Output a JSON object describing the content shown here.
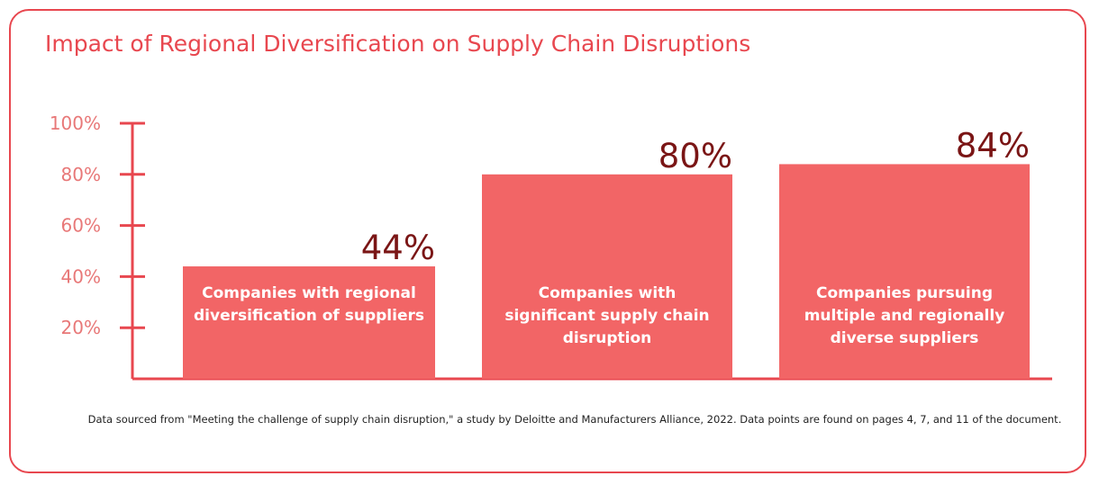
{
  "chart_data": {
    "type": "bar",
    "title": "Impact of Regional Diversification on Supply Chain Disruptions",
    "categories": [
      "Companies with regional diversification of suppliers",
      "Companies with significant supply chain disruption",
      "Companies pursuing multiple and regionally diverse suppliers"
    ],
    "values": [
      44,
      80,
      84
    ],
    "value_labels": [
      "44%",
      "80%",
      "84%"
    ],
    "color": "#f26566",
    "ylim": [
      0,
      100
    ],
    "yticks": [
      {
        "value": 20,
        "label": "20%"
      },
      {
        "value": 40,
        "label": "40%"
      },
      {
        "value": 60,
        "label": "60%"
      },
      {
        "value": 80,
        "label": "80%"
      },
      {
        "value": 100,
        "label": "100%"
      }
    ],
    "note": "Data sourced from \"Meeting the challenge of supply chain disruption,\" a study by Deloitte and Manufacturers Alliance, 2022. Data points are found on pages 4, 7, and 11 of the document."
  }
}
